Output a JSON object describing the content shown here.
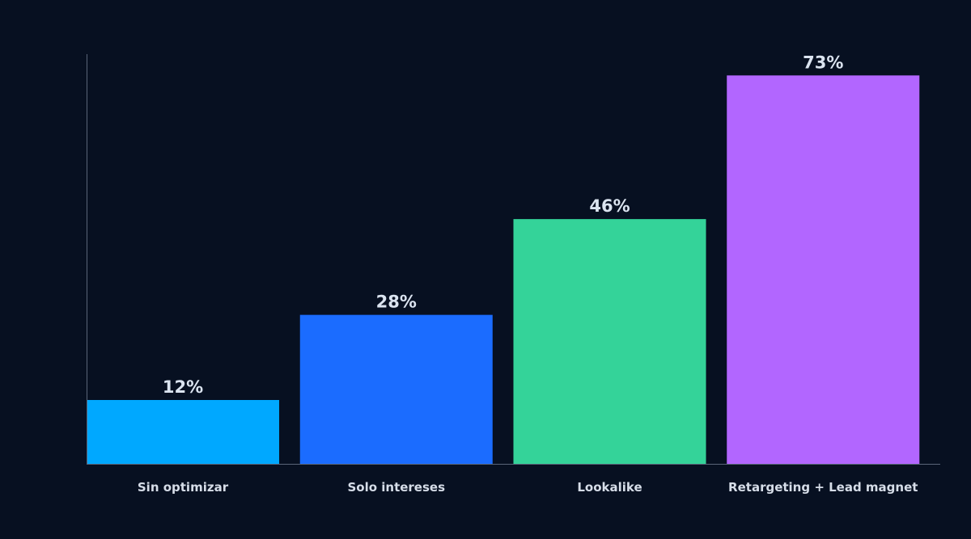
{
  "chart_data": {
    "type": "bar",
    "categories": [
      "Sin optimizar",
      "Solo intereses",
      "Lookalike",
      "Retargeting + Lead magnet"
    ],
    "values": [
      12,
      28,
      46,
      73
    ],
    "value_labels": [
      "12%",
      "28%",
      "46%",
      "73%"
    ],
    "colors": [
      "#00a8ff",
      "#1b6cff",
      "#34d399",
      "#b266ff"
    ],
    "title": "",
    "xlabel": "",
    "ylabel": "",
    "ylim": [
      0,
      77
    ],
    "grid": false,
    "legend": "none"
  },
  "theme": {
    "background": "#071021",
    "axis_color": "#5a6578",
    "label_color": "#dbe4f0"
  }
}
